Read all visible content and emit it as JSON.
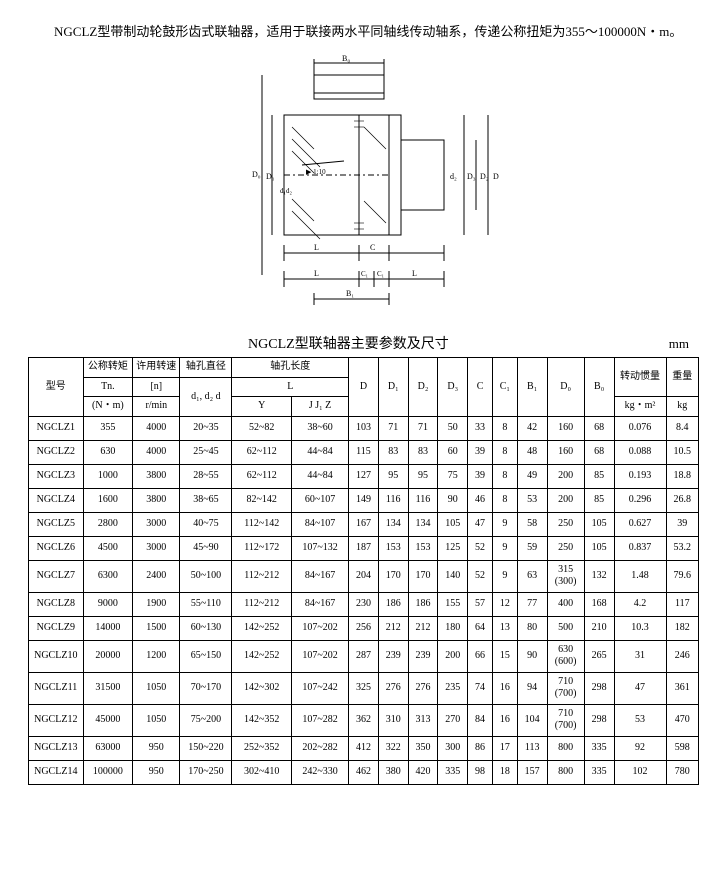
{
  "intro": "　　NGCLZ型带制动轮鼓形齿式联轴器，适用于联接两水平同轴线传动轴系，传递公称扭矩为355～100000N・m。",
  "diagram_labels": [
    "B₀",
    "D₀",
    "D₁",
    "d₁",
    "d₂",
    "D₂",
    "D₃",
    "D",
    "L",
    "C",
    "C₁",
    "B₁",
    "1:10"
  ],
  "table_title": "NGCLZ型联轴器主要参数及尺寸",
  "table_unit": "mm",
  "headers": {
    "model": "型号",
    "tn_title": "公称转矩",
    "tn_sym": "Tn.",
    "tn_unit": "(N・m)",
    "n_title": "许用转速",
    "n_sym": "[n]",
    "n_unit": "r/min",
    "bore_d": "轴孔直径",
    "bore_l_title": "轴孔长度",
    "d12d": "d₁, d₂ d",
    "L": "L",
    "Y": "Y",
    "JZ": "J J₁ Z",
    "D": "D",
    "D1": "D₁",
    "D2": "D₂",
    "D3": "D₃",
    "C": "C",
    "C1": "C₁",
    "B1": "B₁",
    "D0": "D₀",
    "B0": "B₀",
    "J_title": "转动惯量",
    "J_unit": "kg・m²",
    "kg_title": "重量",
    "kg_unit": "kg"
  },
  "rows": [
    {
      "m": "NGCLZ1",
      "tn": "355",
      "n": "4000",
      "d": "20~35",
      "y": "52~82",
      "jz": "38~60",
      "D": "103",
      "D1": "71",
      "D2": "71",
      "D3": "50",
      "C": "33",
      "C1": "8",
      "B1": "42",
      "D0": "160",
      "B0": "68",
      "J": "0.076",
      "kg": "8.4"
    },
    {
      "m": "NGCLZ2",
      "tn": "630",
      "n": "4000",
      "d": "25~45",
      "y": "62~112",
      "jz": "44~84",
      "D": "115",
      "D1": "83",
      "D2": "83",
      "D3": "60",
      "C": "39",
      "C1": "8",
      "B1": "48",
      "D0": "160",
      "B0": "68",
      "J": "0.088",
      "kg": "10.5"
    },
    {
      "m": "NGCLZ3",
      "tn": "1000",
      "n": "3800",
      "d": "28~55",
      "y": "62~112",
      "jz": "44~84",
      "D": "127",
      "D1": "95",
      "D2": "95",
      "D3": "75",
      "C": "39",
      "C1": "8",
      "B1": "49",
      "D0": "200",
      "B0": "85",
      "J": "0.193",
      "kg": "18.8"
    },
    {
      "m": "NGCLZ4",
      "tn": "1600",
      "n": "3800",
      "d": "38~65",
      "y": "82~142",
      "jz": "60~107",
      "D": "149",
      "D1": "116",
      "D2": "116",
      "D3": "90",
      "C": "46",
      "C1": "8",
      "B1": "53",
      "D0": "200",
      "B0": "85",
      "J": "0.296",
      "kg": "26.8"
    },
    {
      "m": "NGCLZ5",
      "tn": "2800",
      "n": "3000",
      "d": "40~75",
      "y": "112~142",
      "jz": "84~107",
      "D": "167",
      "D1": "134",
      "D2": "134",
      "D3": "105",
      "C": "47",
      "C1": "9",
      "B1": "58",
      "D0": "250",
      "B0": "105",
      "J": "0.627",
      "kg": "39"
    },
    {
      "m": "NGCLZ6",
      "tn": "4500",
      "n": "3000",
      "d": "45~90",
      "y": "112~172",
      "jz": "107~132",
      "D": "187",
      "D1": "153",
      "D2": "153",
      "D3": "125",
      "C": "52",
      "C1": "9",
      "B1": "59",
      "D0": "250",
      "B0": "105",
      "J": "0.837",
      "kg": "53.2"
    },
    {
      "m": "NGCLZ7",
      "tn": "6300",
      "n": "2400",
      "d": "50~100",
      "y": "112~212",
      "jz": "84~167",
      "D": "204",
      "D1": "170",
      "D2": "170",
      "D3": "140",
      "C": "52",
      "C1": "9",
      "B1": "63",
      "D0": "315\n(300)",
      "B0": "132",
      "J": "1.48",
      "kg": "79.6"
    },
    {
      "m": "NGCLZ8",
      "tn": "9000",
      "n": "1900",
      "d": "55~110",
      "y": "112~212",
      "jz": "84~167",
      "D": "230",
      "D1": "186",
      "D2": "186",
      "D3": "155",
      "C": "57",
      "C1": "12",
      "B1": "77",
      "D0": "400",
      "B0": "168",
      "J": "4.2",
      "kg": "117"
    },
    {
      "m": "NGCLZ9",
      "tn": "14000",
      "n": "1500",
      "d": "60~130",
      "y": "142~252",
      "jz": "107~202",
      "D": "256",
      "D1": "212",
      "D2": "212",
      "D3": "180",
      "C": "64",
      "C1": "13",
      "B1": "80",
      "D0": "500",
      "B0": "210",
      "J": "10.3",
      "kg": "182"
    },
    {
      "m": "NGCLZ10",
      "tn": "20000",
      "n": "1200",
      "d": "65~150",
      "y": "142~252",
      "jz": "107~202",
      "D": "287",
      "D1": "239",
      "D2": "239",
      "D3": "200",
      "C": "66",
      "C1": "15",
      "B1": "90",
      "D0": "630\n(600)",
      "B0": "265",
      "J": "31",
      "kg": "246"
    },
    {
      "m": "NGCLZ11",
      "tn": "31500",
      "n": "1050",
      "d": "70~170",
      "y": "142~302",
      "jz": "107~242",
      "D": "325",
      "D1": "276",
      "D2": "276",
      "D3": "235",
      "C": "74",
      "C1": "16",
      "B1": "94",
      "D0": "710\n(700)",
      "B0": "298",
      "J": "47",
      "kg": "361"
    },
    {
      "m": "NGCLZ12",
      "tn": "45000",
      "n": "1050",
      "d": "75~200",
      "y": "142~352",
      "jz": "107~282",
      "D": "362",
      "D1": "310",
      "D2": "313",
      "D3": "270",
      "C": "84",
      "C1": "16",
      "B1": "104",
      "D0": "710\n(700)",
      "B0": "298",
      "J": "53",
      "kg": "470"
    },
    {
      "m": "NGCLZ13",
      "tn": "63000",
      "n": "950",
      "d": "150~220",
      "y": "252~352",
      "jz": "202~282",
      "D": "412",
      "D1": "322",
      "D2": "350",
      "D3": "300",
      "C": "86",
      "C1": "17",
      "B1": "113",
      "D0": "800",
      "B0": "335",
      "J": "92",
      "kg": "598"
    },
    {
      "m": "NGCLZ14",
      "tn": "100000",
      "n": "950",
      "d": "170~250",
      "y": "302~410",
      "jz": "242~330",
      "D": "462",
      "D1": "380",
      "D2": "420",
      "D3": "335",
      "C": "98",
      "C1": "18",
      "B1": "157",
      "D0": "800",
      "B0": "335",
      "J": "102",
      "kg": "780"
    }
  ]
}
